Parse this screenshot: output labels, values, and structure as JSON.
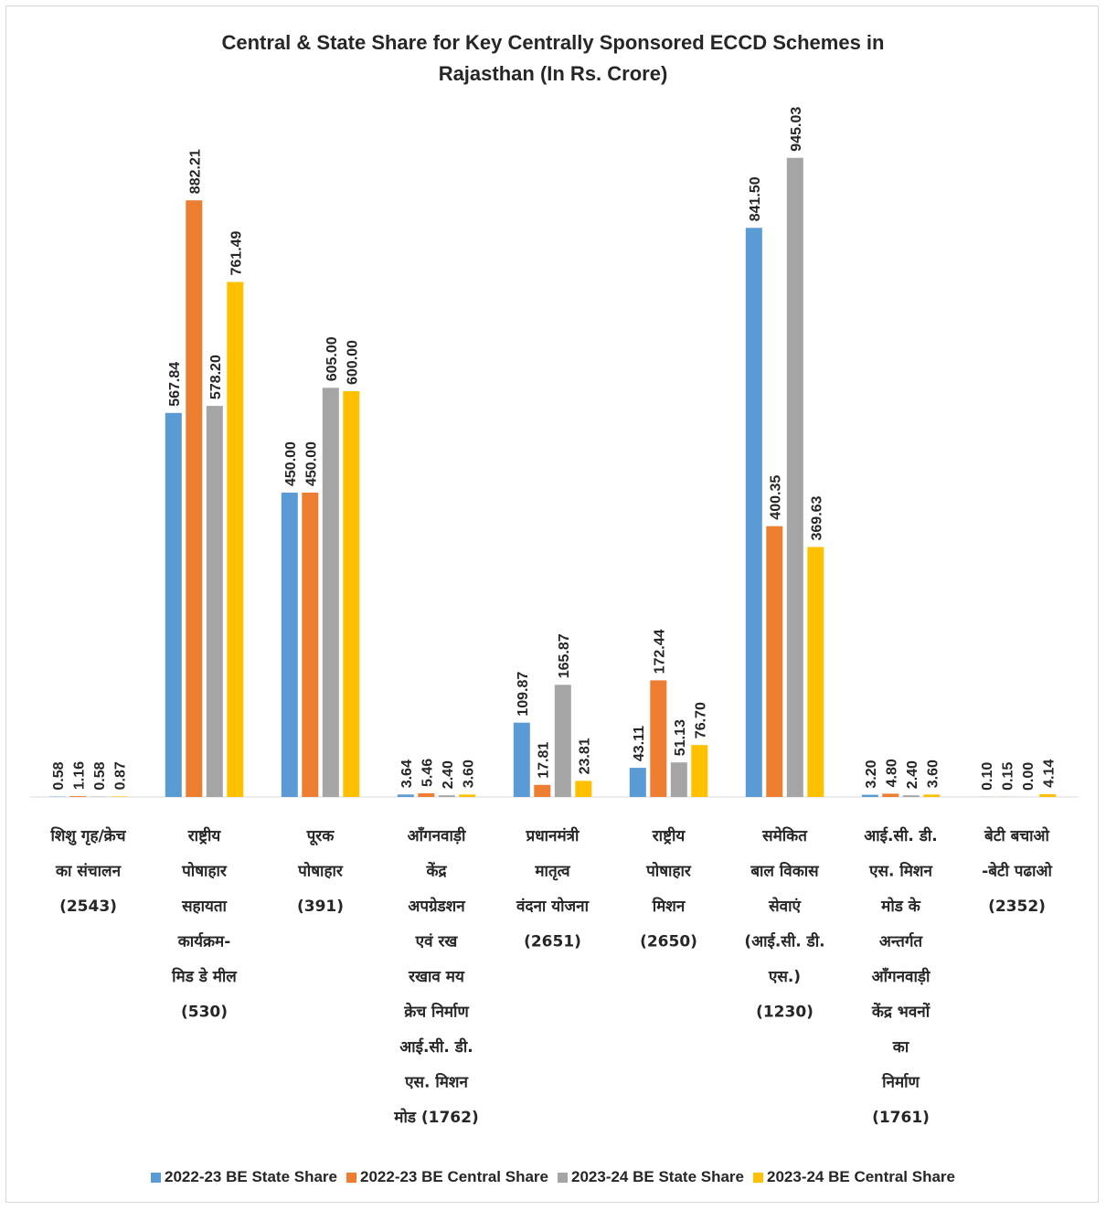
{
  "chart_data": {
    "type": "bar",
    "title": "Central & State Share for Key Centrally Sponsored ECCD Schemes in Rajasthan (In Rs. Crore)",
    "title_lines": [
      "Central & State Share for Key Centrally Sponsored ECCD Schemes in",
      "Rajasthan (In Rs. Crore)"
    ],
    "categories": [
      [
        "शिशु गृह/क्रेच",
        "का संचालन",
        "(2543)"
      ],
      [
        "राष्ट्रीय",
        "पोषाहार",
        "सहायता",
        "कार्यक्रम-",
        "मिड डे मील",
        "(530)"
      ],
      [
        "पूरक",
        "पोषाहार",
        "(391)"
      ],
      [
        "आँगनवाड़ी",
        "केंद्र",
        "अपग्रेडशन",
        "एवं रख",
        "रखाव मय",
        "क्रेच निर्माण",
        "आई.सी. डी.",
        "एस. मिशन",
        "मोड (1762)"
      ],
      [
        "प्रधानमंत्री",
        "मातृत्व",
        "वंदना योजना",
        "(2651)"
      ],
      [
        "राष्ट्रीय",
        "पोषाहार",
        "मिशन",
        "(2650)"
      ],
      [
        "समेकित",
        "बाल विकास",
        "सेवाएं",
        "(आई.सी. डी.",
        "एस.)",
        "(1230)"
      ],
      [
        "आई.सी. डी.",
        "एस. मिशन",
        "मोड के",
        "अन्तर्गत",
        "आँगनवाड़ी",
        "केंद्र भवनों",
        "का",
        "निर्माण",
        "(1761)"
      ],
      [
        "बेटी बचाओ",
        "-बेटी पढाओ",
        "(2352)"
      ]
    ],
    "series": [
      {
        "name": "2022-23 BE State Share",
        "color": "#5B9BD5",
        "values": [
          0.58,
          567.84,
          450.0,
          3.64,
          109.87,
          43.11,
          841.5,
          3.2,
          0.1
        ],
        "labels": [
          "0.58",
          "567.84",
          "450.00",
          "3.64",
          "109.87",
          "43.11",
          "841.50",
          "3.20",
          "0.10"
        ]
      },
      {
        "name": "2022-23 BE Central Share",
        "color": "#ED7D31",
        "values": [
          1.16,
          882.21,
          450.0,
          5.46,
          17.81,
          172.44,
          400.35,
          4.8,
          0.15
        ],
        "labels": [
          "1.16",
          "882.21",
          "450.00",
          "5.46",
          "17.81",
          "172.44",
          "400.35",
          "4.80",
          "0.15"
        ]
      },
      {
        "name": "2023-24 BE State Share",
        "color": "#A5A5A5",
        "values": [
          0.58,
          578.2,
          605.0,
          2.4,
          165.87,
          51.13,
          945.03,
          2.4,
          0.0
        ],
        "labels": [
          "0.58",
          "578.20",
          "605.00",
          "2.40",
          "165.87",
          "51.13",
          "945.03",
          "2.40",
          "0.00"
        ]
      },
      {
        "name": "2023-24 BE Central Share",
        "color": "#FFC000",
        "values": [
          0.87,
          761.49,
          600.0,
          3.6,
          23.81,
          76.7,
          369.63,
          3.6,
          4.14
        ],
        "labels": [
          "0.87",
          "761.49",
          "600.00",
          "3.60",
          "23.81",
          "76.70",
          "369.63",
          "3.60",
          "4.14"
        ]
      }
    ],
    "ylim": [
      0,
      1000
    ],
    "grid": false,
    "legend_position": "bottom"
  }
}
